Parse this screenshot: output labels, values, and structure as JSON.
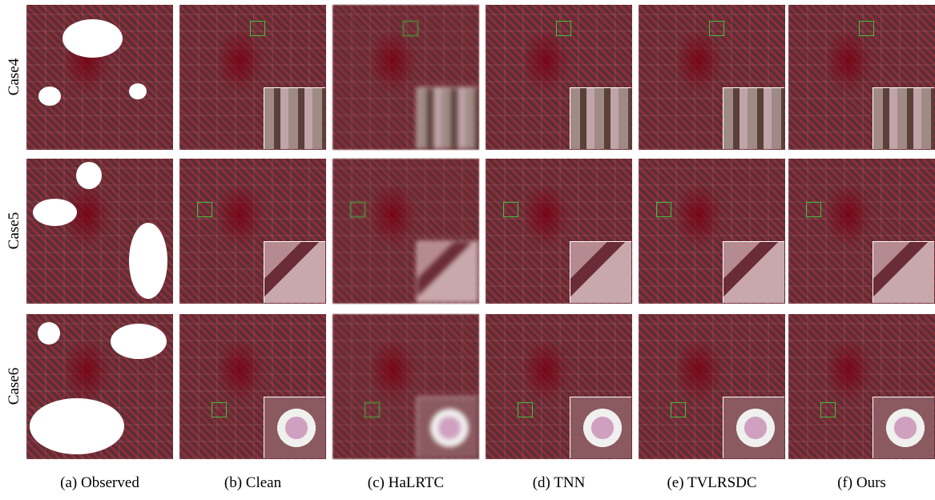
{
  "row_labels": [
    "Case4",
    "Case5",
    "Case6"
  ],
  "column_captions": [
    "(a) Observed",
    "(b) Clean",
    "(c) HaLRTC",
    "(d) TNN",
    "(e) TVLRSDC",
    "(f) Ours"
  ]
}
